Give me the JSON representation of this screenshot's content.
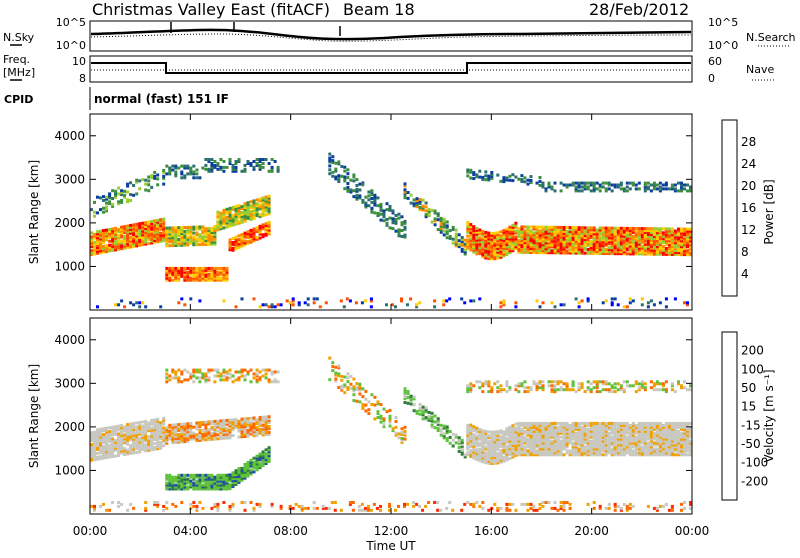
{
  "header": {
    "title": "Christmas Valley East (fitACF)",
    "beam": "Beam 18",
    "date": "28/Feb/2012"
  },
  "status_panels": {
    "nsky_label": "N.Sky",
    "nsearch_label": "N.Search",
    "noise_ticks": [
      "10^5",
      "10^0"
    ],
    "freq_label": "Freq.",
    "freq_unit": "[MHz]",
    "freq_ticks": [
      "10",
      "8"
    ],
    "nave_label": "Nave",
    "nave_ticks": [
      "60",
      "0"
    ],
    "cpid_label": "CPID",
    "cpid_text": "normal (fast) 151 IF"
  },
  "colors": {
    "power": [
      "#0000ff",
      "#0a3fa0",
      "#2c6f6f",
      "#3c8f3c",
      "#9acd32",
      "#ffcc00",
      "#ff8c00",
      "#ff5000",
      "#ff0000"
    ],
    "velocity": [
      "#0a1e8c",
      "#1f4fa0",
      "#2e7d3c",
      "#5fc23a",
      "#c8c8c0",
      "#f0a000",
      "#ff6a00",
      "#ff2a00",
      "#ff0000"
    ]
  },
  "chart_data": [
    {
      "type": "heatmap",
      "name": "power",
      "ylabel": "Slant Range [km]",
      "yticks": [
        1000,
        2000,
        3000,
        4000
      ],
      "ylim": [
        0,
        4500
      ],
      "xlim": [
        "00:00",
        "24:00"
      ],
      "colorbar_label": "Power [dB]",
      "colorbar_ticks": [
        "28",
        "24",
        "20",
        "16",
        "12",
        "8",
        "4"
      ]
    },
    {
      "type": "heatmap",
      "name": "velocity",
      "ylabel": "Slant Range [km]",
      "yticks": [
        1000,
        2000,
        3000,
        4000
      ],
      "ylim": [
        0,
        4500
      ],
      "xlim": [
        "00:00",
        "24:00"
      ],
      "xticks": [
        "00:00",
        "04:00",
        "08:00",
        "12:00",
        "16:00",
        "20:00",
        "00:00"
      ],
      "xlabel": "Time UT",
      "colorbar_label": "Velocity [m s⁻¹]",
      "colorbar_ticks": [
        "200",
        "100",
        "50",
        "15",
        "-15",
        "-50",
        "-100",
        "-200"
      ]
    }
  ]
}
